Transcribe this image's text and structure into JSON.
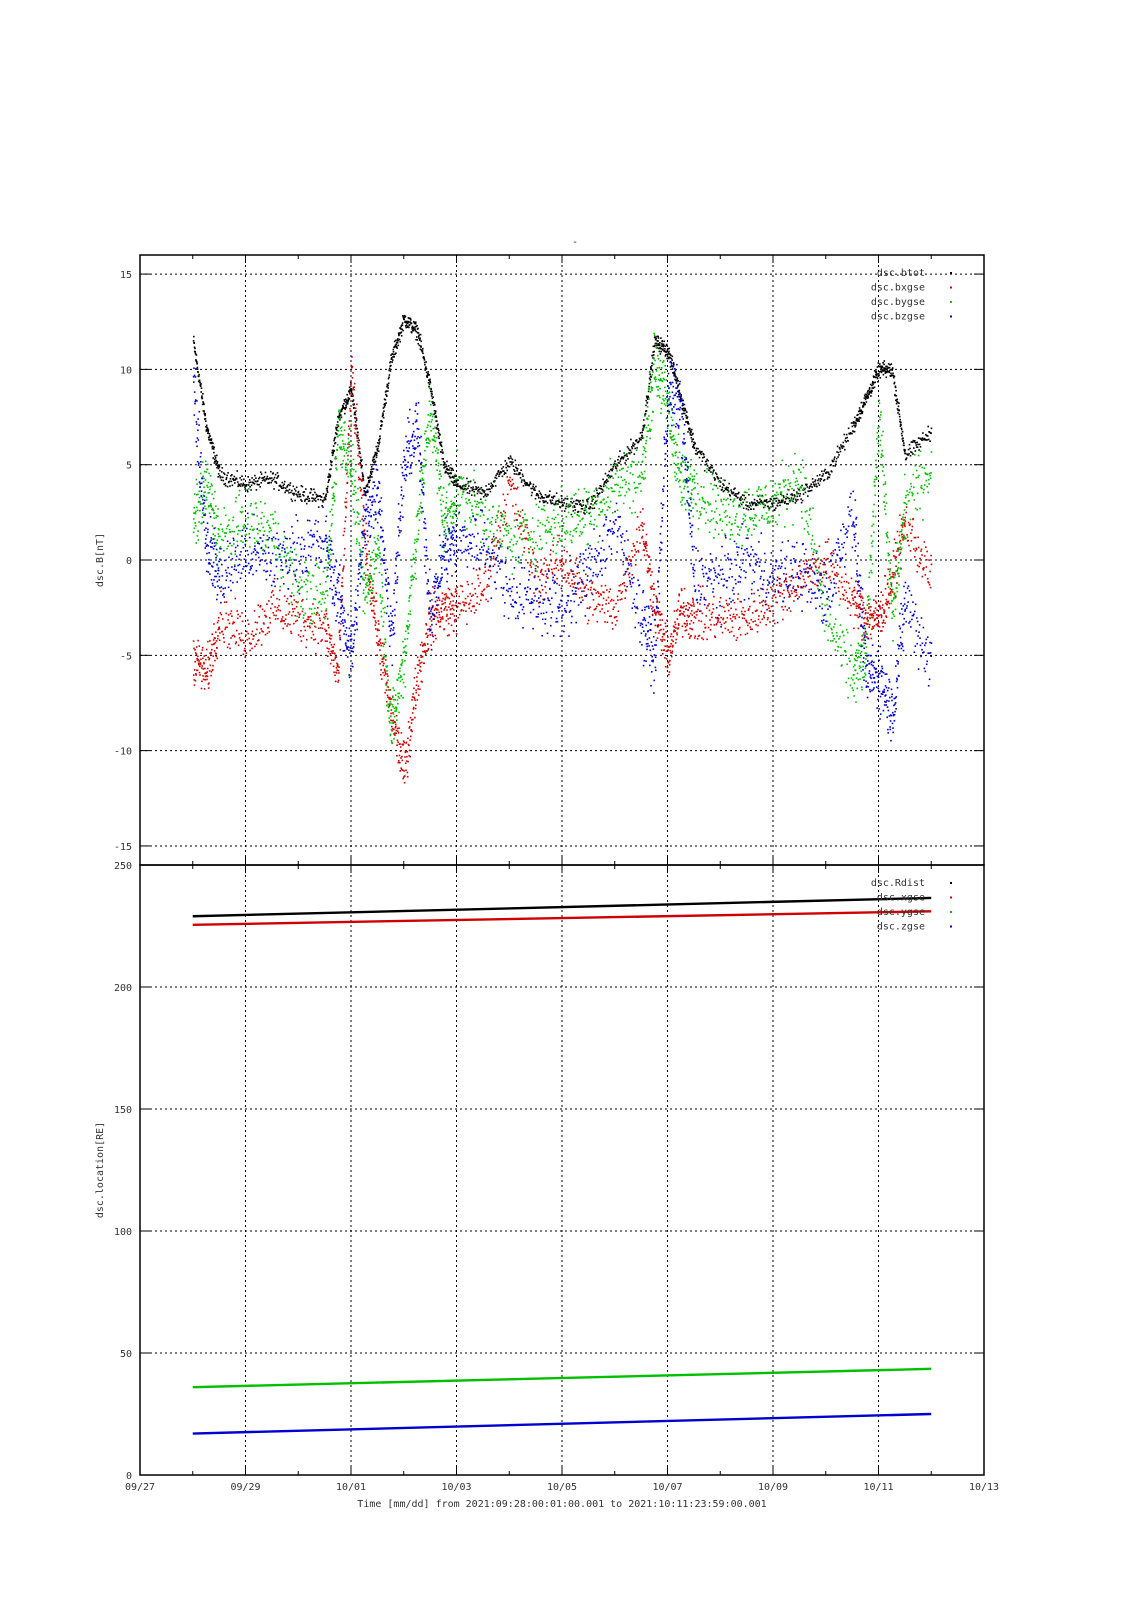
{
  "page_title": "-",
  "chart_data": [
    {
      "type": "scatter",
      "ylabel": "dsc.B[nT]",
      "ylim": [
        -16,
        16
      ],
      "yticks": [
        15,
        10,
        5,
        0,
        -5,
        -10,
        -15
      ],
      "xlim_days": [
        0,
        16
      ],
      "xticks": [
        "09/27",
        "09/29",
        "10/01",
        "10/03",
        "10/05",
        "10/07",
        "10/09",
        "10/11",
        "10/13"
      ],
      "grid": true,
      "legend_position": "top-right",
      "series": [
        {
          "name": "dsc.btot",
          "color": "#000000",
          "x": [
            "09/28 00:00",
            "09/28 06:00",
            "09/28 12:00",
            "09/29 00:00",
            "09/29 12:00",
            "09/30 00:00",
            "09/30 12:00",
            "09/30 18:00",
            "10/01 00:00",
            "10/01 06:00",
            "10/01 12:00",
            "10/01 18:00",
            "10/02 00:00",
            "10/02 06:00",
            "10/02 12:00",
            "10/02 18:00",
            "10/03 00:00",
            "10/03 12:00",
            "10/04 00:00",
            "10/04 12:00",
            "10/05 00:00",
            "10/05 12:00",
            "10/06 00:00",
            "10/06 12:00",
            "10/06 18:00",
            "10/07 00:00",
            "10/07 06:00",
            "10/07 12:00",
            "10/08 00:00",
            "10/08 12:00",
            "10/09 00:00",
            "10/09 12:00",
            "10/10 00:00",
            "10/10 12:00",
            "10/10 18:00",
            "10/11 00:00",
            "10/11 06:00",
            "10/11 12:00",
            "10/11 23:59"
          ],
          "values": [
            11.5,
            7,
            4.5,
            4,
            4.3,
            3.5,
            3.2,
            7.5,
            9,
            3.5,
            6,
            10.5,
            12.7,
            12,
            9,
            5,
            4,
            3.5,
            5.2,
            3.5,
            3,
            2.8,
            5,
            6.5,
            11.5,
            11,
            8.5,
            6,
            4,
            3,
            3,
            3.5,
            4.5,
            7,
            8.5,
            10,
            10,
            5.5,
            6.8
          ]
        },
        {
          "name": "dsc.bxgse",
          "color": "#d00000",
          "x": [
            "09/28 00:00",
            "09/28 06:00",
            "09/28 12:00",
            "09/29 00:00",
            "09/29 12:00",
            "09/30 00:00",
            "09/30 12:00",
            "09/30 18:00",
            "10/01 00:00",
            "10/01 06:00",
            "10/01 12:00",
            "10/01 18:00",
            "10/02 00:00",
            "10/02 06:00",
            "10/02 12:00",
            "10/02 18:00",
            "10/03 00:00",
            "10/03 12:00",
            "10/04 00:00",
            "10/04 12:00",
            "10/05 00:00",
            "10/05 12:00",
            "10/06 00:00",
            "10/06 12:00",
            "10/06 18:00",
            "10/07 00:00",
            "10/07 06:00",
            "10/07 12:00",
            "10/08 00:00",
            "10/08 12:00",
            "10/09 00:00",
            "10/09 12:00",
            "10/10 00:00",
            "10/10 12:00",
            "10/10 18:00",
            "10/11 00:00",
            "10/11 06:00",
            "10/11 12:00",
            "10/11 23:59"
          ],
          "values": [
            -5,
            -6,
            -3,
            -4,
            -2.5,
            -3,
            -3.5,
            -6,
            10,
            1,
            -4,
            -8,
            -11,
            -6,
            -3,
            -2.5,
            -2.5,
            -1.5,
            4,
            -1,
            0,
            -2,
            -2.5,
            2,
            -2.5,
            -5,
            -2.5,
            -3,
            -3,
            -3,
            -2,
            -1,
            0,
            -2,
            -3,
            -3,
            -1,
            2,
            -1
          ]
        },
        {
          "name": "dsc.bygse",
          "color": "#00c000",
          "x": [
            "09/28 00:00",
            "09/28 06:00",
            "09/28 12:00",
            "09/29 00:00",
            "09/29 12:00",
            "09/30 00:00",
            "09/30 12:00",
            "09/30 18:00",
            "10/01 00:00",
            "10/01 06:00",
            "10/01 12:00",
            "10/01 18:00",
            "10/02 00:00",
            "10/02 06:00",
            "10/02 12:00",
            "10/02 18:00",
            "10/03 00:00",
            "10/03 12:00",
            "10/04 00:00",
            "10/04 12:00",
            "10/05 00:00",
            "10/05 12:00",
            "10/06 00:00",
            "10/06 12:00",
            "10/06 18:00",
            "10/07 00:00",
            "10/07 06:00",
            "10/07 12:00",
            "10/08 00:00",
            "10/08 12:00",
            "10/09 00:00",
            "10/09 12:00",
            "10/10 00:00",
            "10/10 12:00",
            "10/10 18:00",
            "10/11 00:00",
            "10/11 06:00",
            "10/11 12:00",
            "10/11 23:59"
          ],
          "values": [
            2,
            4,
            1,
            2,
            1.5,
            -1.5,
            -2,
            7,
            5,
            -2,
            1,
            -9,
            -5,
            2,
            8,
            2,
            3.5,
            2.5,
            1,
            1.5,
            2,
            2.5,
            4,
            4.5,
            10.5,
            8,
            4,
            4,
            2.5,
            2.5,
            3,
            4.5,
            -3,
            -6,
            -5,
            8,
            -3,
            3,
            5
          ]
        },
        {
          "name": "dsc.bzgse",
          "color": "#0000d0",
          "x": [
            "09/28 00:00",
            "09/28 06:00",
            "09/28 12:00",
            "09/29 00:00",
            "09/29 12:00",
            "09/30 00:00",
            "09/30 12:00",
            "09/30 18:00",
            "10/01 00:00",
            "10/01 06:00",
            "10/01 12:00",
            "10/01 18:00",
            "10/02 00:00",
            "10/02 06:00",
            "10/02 12:00",
            "10/02 18:00",
            "10/03 00:00",
            "10/03 12:00",
            "10/04 00:00",
            "10/04 12:00",
            "10/05 00:00",
            "10/05 12:00",
            "10/06 00:00",
            "10/06 12:00",
            "10/06 18:00",
            "10/07 00:00",
            "10/07 06:00",
            "10/07 12:00",
            "10/08 00:00",
            "10/08 12:00",
            "10/09 00:00",
            "10/09 12:00",
            "10/10 00:00",
            "10/10 12:00",
            "10/10 18:00",
            "10/11 00:00",
            "10/11 06:00",
            "10/11 12:00",
            "10/11 23:59"
          ],
          "values": [
            9.5,
            1,
            -1,
            0.5,
            0,
            0.5,
            1,
            -2,
            -5,
            2,
            4,
            -4,
            5,
            7,
            -3,
            0.5,
            1,
            1,
            -1.5,
            -2,
            -2.5,
            -0.5,
            2,
            -3,
            -5,
            9,
            8,
            -1,
            -1,
            0,
            -1,
            -0.5,
            -2,
            3,
            -6,
            -6,
            -8,
            -2,
            -5.5
          ]
        }
      ]
    },
    {
      "type": "line",
      "ylabel": "dsc.location[RE]",
      "ylim": [
        0,
        250
      ],
      "yticks": [
        250,
        200,
        150,
        100,
        50,
        0
      ],
      "xlim_days": [
        0,
        16
      ],
      "xticks": [
        "09/27",
        "09/29",
        "10/01",
        "10/03",
        "10/05",
        "10/07",
        "10/09",
        "10/11",
        "10/13"
      ],
      "xlabel": "Time [mm/dd]  from 2021:09:28:00:01:00.001  to  2021:10:11:23:59:00.001",
      "grid": true,
      "legend_position": "top-right",
      "series": [
        {
          "name": "dsc.Rdist",
          "color": "#000000",
          "x": [
            "09/28 00:00",
            "10/11 23:59"
          ],
          "values": [
            229,
            236.5
          ]
        },
        {
          "name": "dsc.xgse",
          "color": "#d00000",
          "x": [
            "09/28 00:00",
            "10/11 23:59"
          ],
          "values": [
            225.5,
            231
          ]
        },
        {
          "name": "dsc.ygse",
          "color": "#00c000",
          "x": [
            "09/28 00:00",
            "10/11 23:59"
          ],
          "values": [
            36,
            43.5
          ]
        },
        {
          "name": "dsc.zgse",
          "color": "#0000d0",
          "x": [
            "09/28 00:00",
            "10/11 23:59"
          ],
          "values": [
            17,
            25
          ]
        }
      ]
    }
  ]
}
